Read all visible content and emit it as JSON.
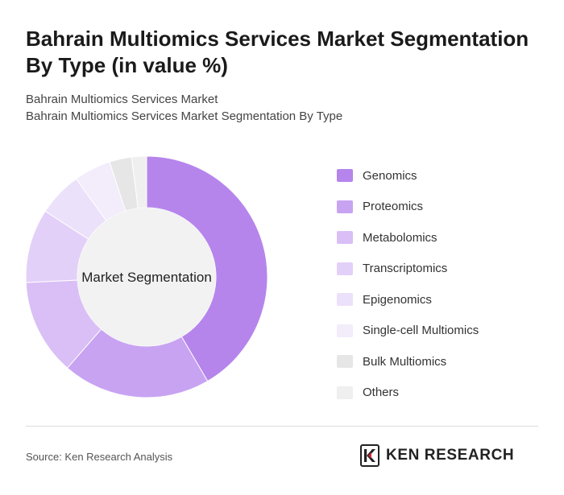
{
  "header": {
    "title": "Bahrain Multiomics Services Market Segmentation By Type (in value %)",
    "subtitle_line1": "Bahrain Multiomics Services Market",
    "subtitle_line2": "Bahrain Multiomics Services Market Segmentation By Type"
  },
  "chart_data": {
    "type": "pie",
    "center_label": "Market Segmentation",
    "categories": [
      "Genomics",
      "Proteomics",
      "Metabolomics",
      "Transcriptomics",
      "Epigenomics",
      "Single-cell Multiomics",
      "Bulk Multiomics",
      "Others"
    ],
    "values": [
      42,
      20,
      13,
      10,
      6,
      5,
      3,
      2
    ],
    "colors": [
      "#b585ec",
      "#c8a3f2",
      "#d9bff6",
      "#e3d0f8",
      "#ece1fa",
      "#f2ecfb",
      "#e6e6e6",
      "#efefef"
    ],
    "legend_position": "right"
  },
  "footer": {
    "source": "Source: Ken Research Analysis",
    "brand": "KEN RESEARCH"
  }
}
